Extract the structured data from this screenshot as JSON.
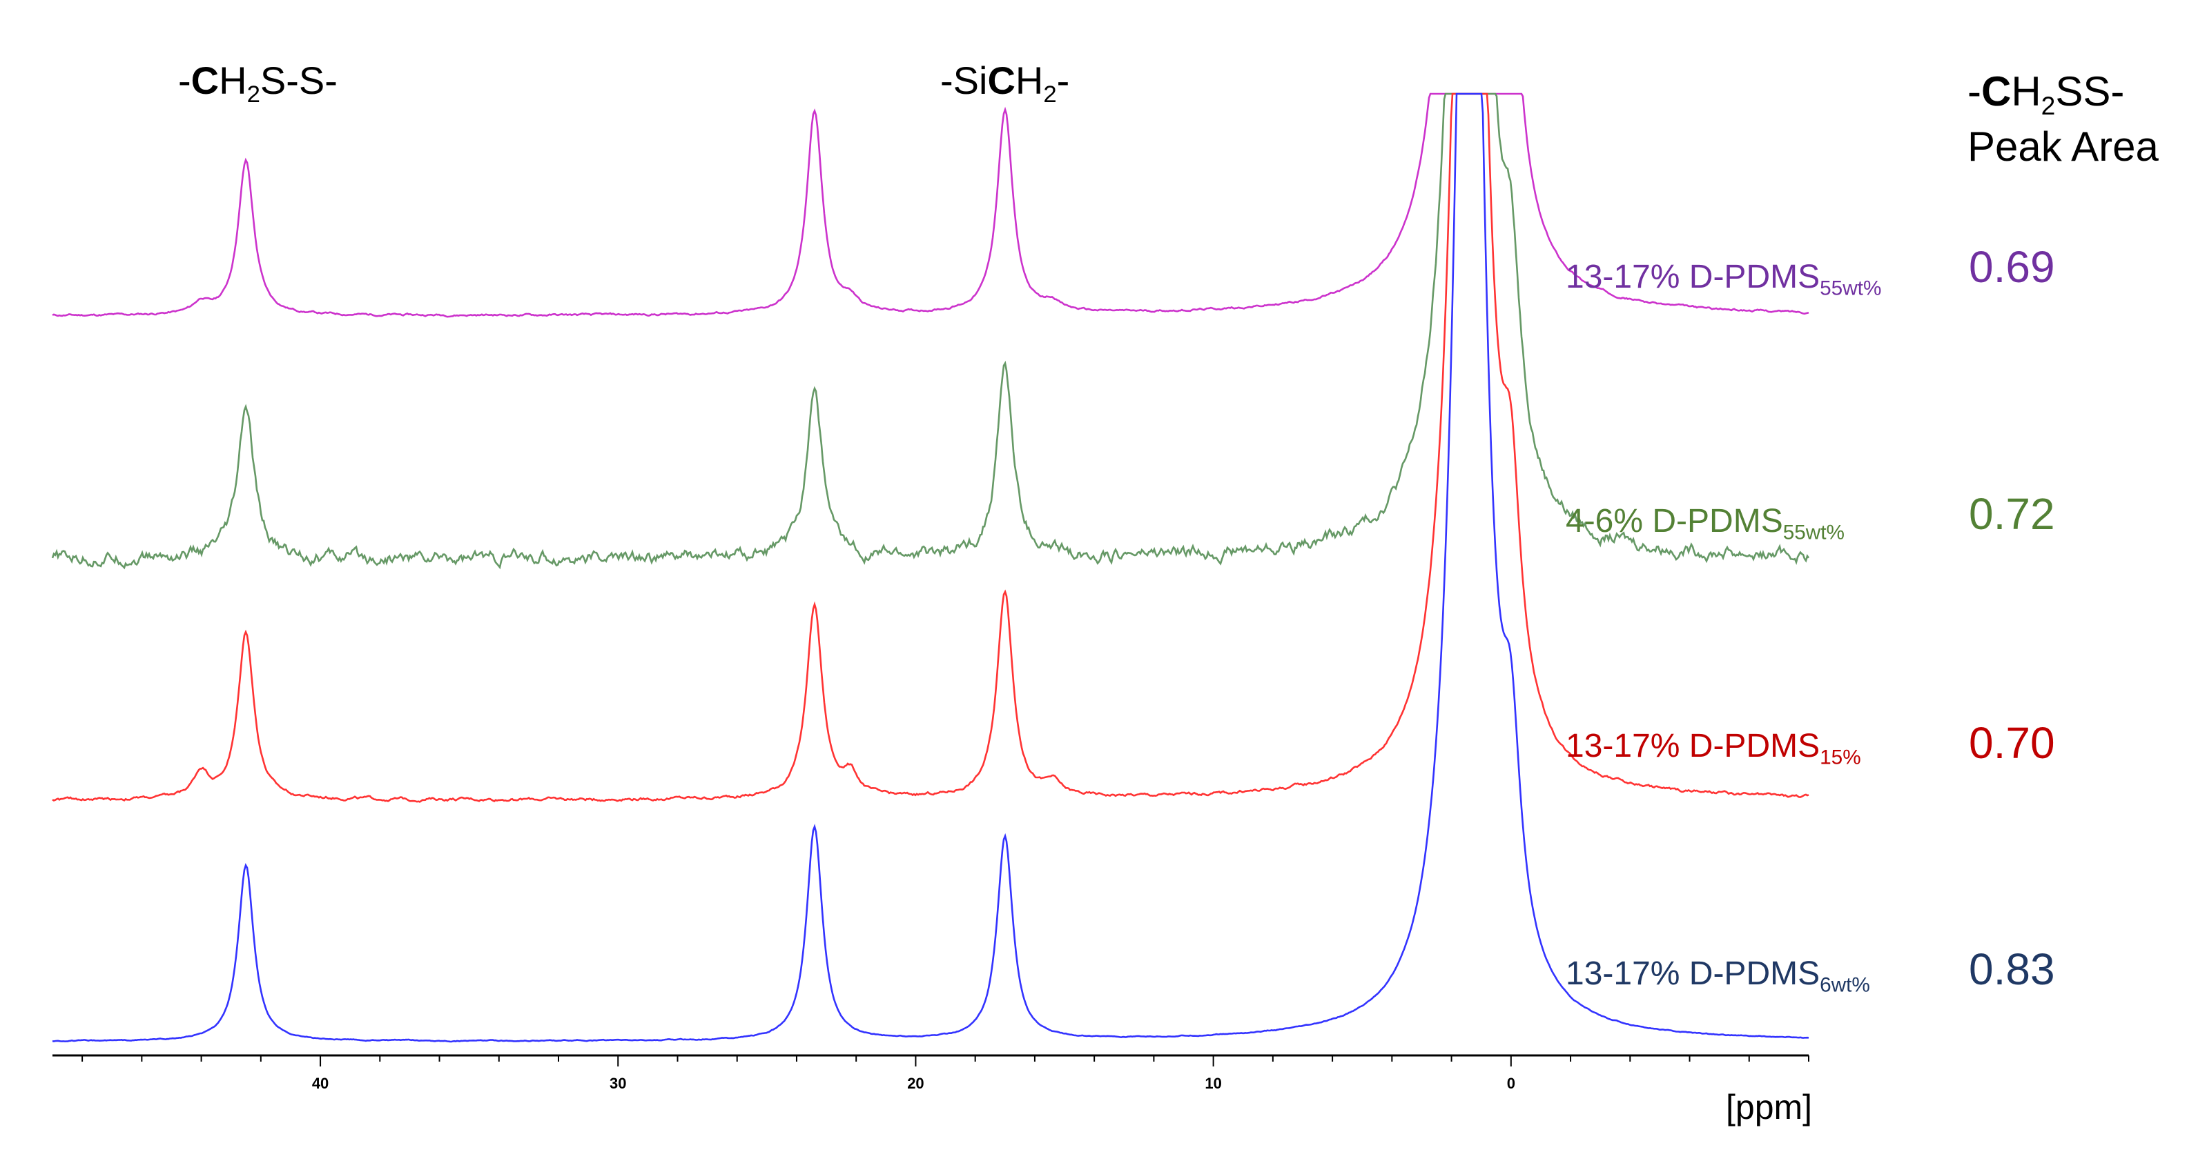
{
  "chart_data": {
    "type": "line",
    "title": "",
    "xlabel": "[ppm]",
    "x_range": [
      49,
      -10
    ],
    "x_axis_reversed": true,
    "x_ticks": [
      40,
      30,
      20,
      10,
      0
    ],
    "x_tick_labels": [
      "40",
      "30",
      "20",
      "10",
      "0"
    ],
    "peak_annotations": [
      {
        "id": "ch2ss",
        "prefix": "-",
        "bold": "C",
        "mid": "H",
        "sub": "2",
        "suffix": "S-S-",
        "ppm": 42.5
      },
      {
        "id": "sich2",
        "prefix": "-Si",
        "bold": "C",
        "mid": "H",
        "sub": "2",
        "suffix": "-",
        "ppm": 20
      }
    ],
    "area_header": {
      "prefix": "-",
      "bold": "C",
      "mid": "H",
      "sub": "2",
      "suffix": "SS-",
      "line2": "Peak Area"
    },
    "series": [
      {
        "name": "13-17% D-PDMS 55wt%",
        "label_main": "13-17% D-PDMS",
        "label_sub": "55wt%",
        "peak_area": "0.69",
        "color": "#CC33CC",
        "label_color": "#7030A0",
        "value_color": "#7030A0",
        "peaks": [
          {
            "ppm": 42.5,
            "height": 0.7
          },
          {
            "ppm": 23.4,
            "height": 0.92
          },
          {
            "ppm": 17.0,
            "height": 0.92
          },
          {
            "ppm": 0.0,
            "height": 0.85
          },
          {
            "ppm": 44.0,
            "height": 0.05
          },
          {
            "ppm": 22.2,
            "height": 0.05
          },
          {
            "ppm": 15.4,
            "height": 0.04
          }
        ],
        "noise": 0.008
      },
      {
        "name": "4-6% D-PDMS 55wt%",
        "label_main": "4-6% D-PDMS",
        "label_sub": "55wt%",
        "peak_area": "0.72",
        "color": "#669966",
        "label_color": "#538135",
        "value_color": "#538135",
        "peaks": [
          {
            "ppm": 42.5,
            "height": 0.7
          },
          {
            "ppm": 23.4,
            "height": 0.8
          },
          {
            "ppm": 17.0,
            "height": 0.89
          },
          {
            "ppm": 0.0,
            "height": 0.8
          }
        ],
        "noise": 0.05
      },
      {
        "name": "13-17% D-PDMS 15%",
        "label_main": "13-17% D-PDMS",
        "label_sub": "15%",
        "peak_area": "0.70",
        "color": "#FF3333",
        "label_color": "#C00000",
        "value_color": "#C00000",
        "peaks": [
          {
            "ppm": 42.5,
            "height": 0.78
          },
          {
            "ppm": 23.4,
            "height": 0.9
          },
          {
            "ppm": 17.0,
            "height": 0.97
          },
          {
            "ppm": 0.0,
            "height": 0.9
          },
          {
            "ppm": 44.0,
            "height": 0.12
          },
          {
            "ppm": 22.2,
            "height": 0.1
          },
          {
            "ppm": 15.4,
            "height": 0.06
          }
        ],
        "noise": 0.012
      },
      {
        "name": "13-17% D-PDMS 6wt%",
        "label_main": "13-17% D-PDMS",
        "label_sub": "6wt%",
        "peak_area": "0.83",
        "color": "#3333FF",
        "label_color": "#1F3864",
        "value_color": "#1F3864",
        "peaks": [
          {
            "ppm": 42.5,
            "height": 0.82
          },
          {
            "ppm": 23.4,
            "height": 1.0
          },
          {
            "ppm": 17.0,
            "height": 0.95
          },
          {
            "ppm": 0.0,
            "height": 0.85
          }
        ],
        "noise": 0.004
      }
    ],
    "solvent_peak": {
      "ppm": 1.4,
      "clipped": true
    }
  }
}
